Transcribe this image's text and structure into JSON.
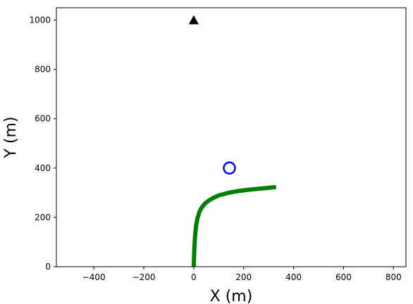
{
  "chart_data": {
    "type": "line",
    "title": "",
    "xlabel": "X (m)",
    "ylabel": "Y (m)",
    "xlim": [
      -550,
      850
    ],
    "ylim": [
      0,
      1050
    ],
    "xticks": [
      -400,
      -200,
      0,
      200,
      400,
      600,
      800
    ],
    "yticks": [
      0,
      200,
      400,
      600,
      800,
      1000
    ],
    "xtick_labels": [
      "−400",
      "−200",
      "0",
      "200",
      "400",
      "600",
      "800"
    ],
    "ytick_labels": [
      "0",
      "200",
      "400",
      "600",
      "800",
      "1000"
    ],
    "grid": false,
    "series": [
      {
        "kind": "line",
        "color": "#008000",
        "x": [
          0,
          2,
          5,
          10,
          16,
          24,
          32,
          45,
          60,
          80,
          100,
          140,
          180,
          220,
          260,
          300,
          330
        ],
        "y": [
          0,
          60,
          120,
          170,
          200,
          225,
          240,
          256,
          268,
          280,
          289,
          300,
          307,
          312,
          316,
          320,
          323
        ]
      },
      {
        "kind": "marker",
        "marker": "circle-open",
        "color": "#0000ff",
        "x": [
          143
        ],
        "y": [
          400
        ]
      },
      {
        "kind": "marker",
        "marker": "triangle",
        "color": "#000000",
        "x": [
          0
        ],
        "y": [
          1000
        ]
      }
    ]
  }
}
